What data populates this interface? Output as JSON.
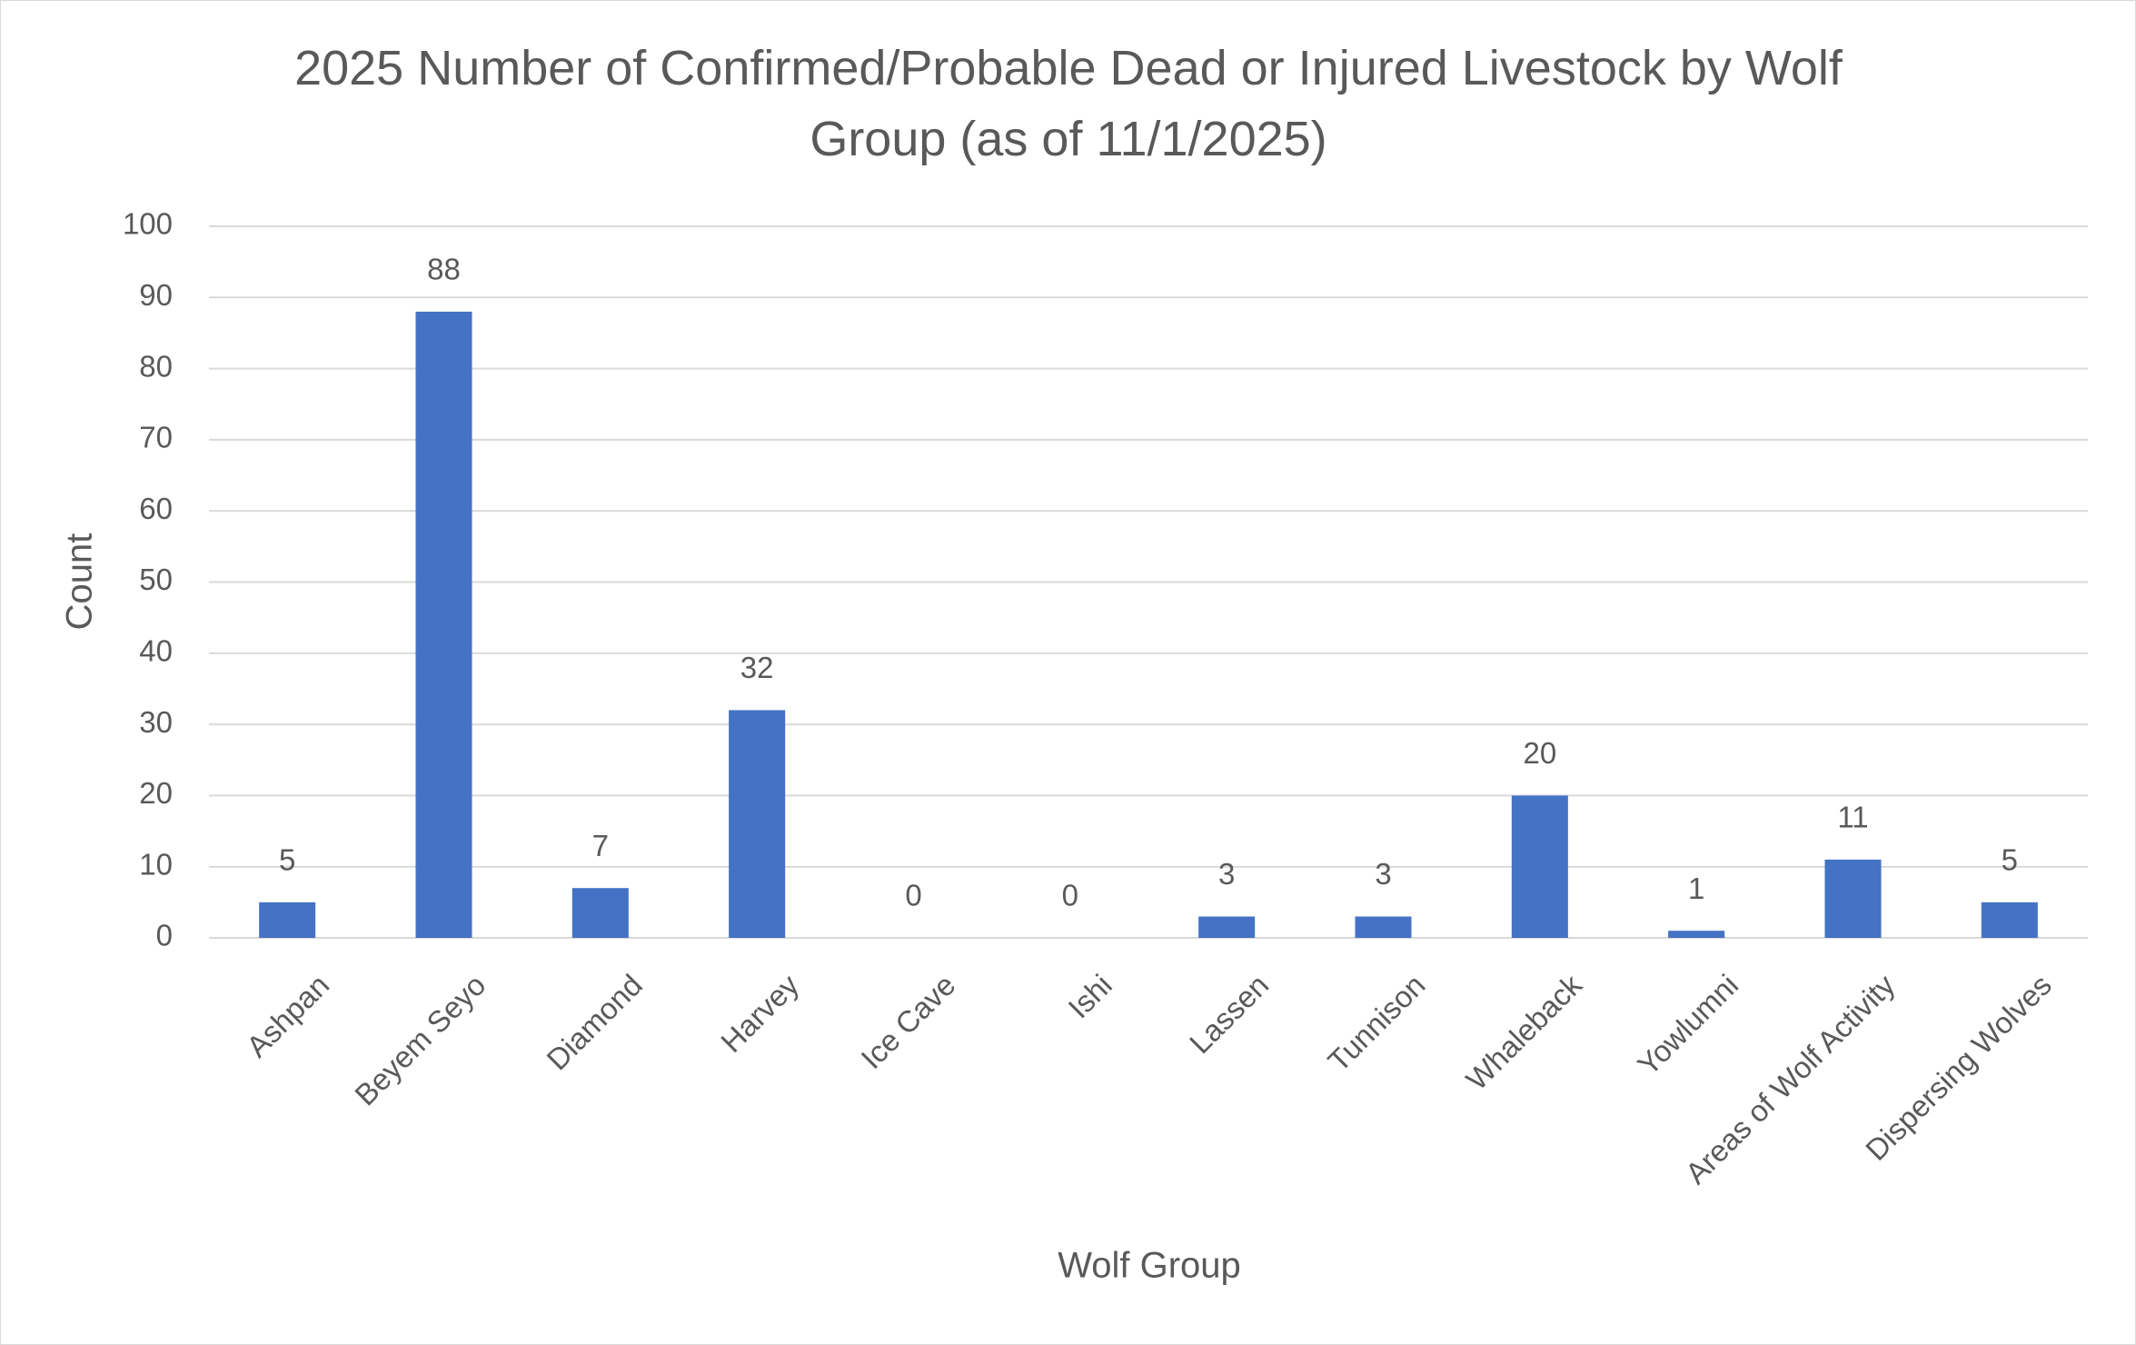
{
  "chart_data": {
    "type": "bar",
    "title": "2025 Number of Confirmed/Probable Dead or Injured Livestock by Wolf Group (as of 11/1/2025)",
    "x_label": "Wolf Group",
    "y_label": "Count",
    "categories": [
      "Ashpan",
      "Beyem Seyo",
      "Diamond",
      "Harvey",
      "Ice Cave",
      "Ishi",
      "Lassen",
      "Tunnison",
      "Whaleback",
      "Yowlumni",
      "Areas of Wolf Activity",
      "Dispersing Wolves"
    ],
    "values": [
      5,
      88,
      7,
      32,
      0,
      0,
      3,
      3,
      20,
      1,
      11,
      5
    ],
    "color": "#4472c4",
    "ylim": [
      0,
      100
    ],
    "yticks": [
      0,
      10,
      20,
      30,
      40,
      50,
      60,
      70,
      80,
      90,
      100
    ],
    "grid": true,
    "data_labels": true
  }
}
